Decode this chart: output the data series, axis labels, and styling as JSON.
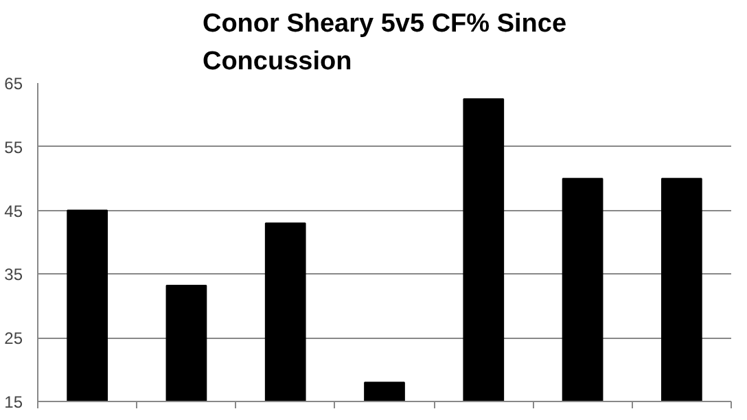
{
  "chart_data": {
    "type": "bar",
    "title": "Conor Sheary 5v5 CF% Since Concussion",
    "categories": [
      null,
      null,
      null,
      null,
      null,
      null,
      null
    ],
    "values": [
      45,
      33.2,
      43,
      18,
      62.5,
      50,
      50
    ],
    "color": "#000000",
    "ylim": [
      15,
      65
    ],
    "yticks": [
      15,
      25,
      35,
      45,
      55,
      65
    ],
    "grid": "y",
    "tick_labels": "y"
  }
}
